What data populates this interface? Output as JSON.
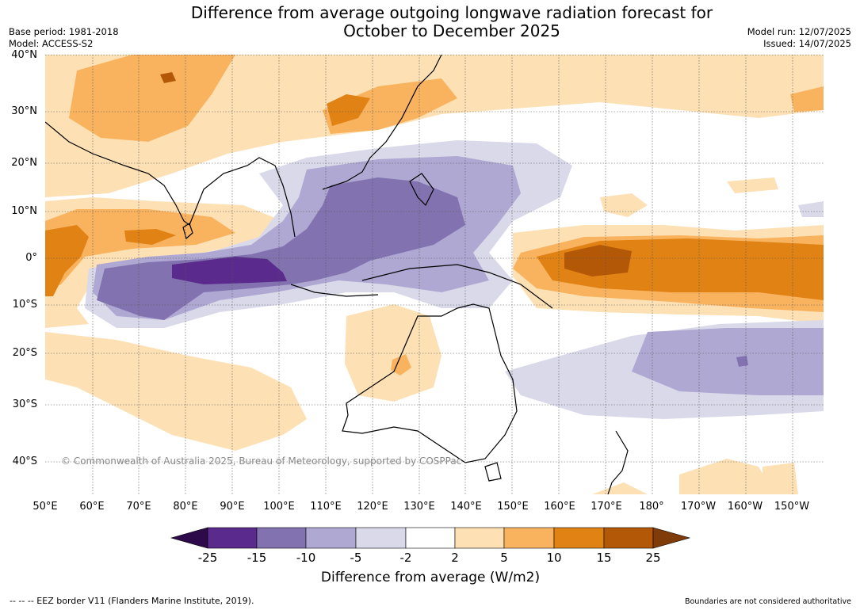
{
  "title": {
    "line1": "Difference from average outgoing longwave radiation forecast for",
    "line2": "October to December 2025"
  },
  "meta_left": {
    "base_period": "Base period: 1981-2018",
    "model": "Model: ACCESS-S2"
  },
  "meta_right": {
    "model_run": "Model run: 12/07/2025",
    "issued": "Issued: 14/07/2025"
  },
  "map": {
    "lat_labels": [
      "40°N",
      "30°N",
      "20°N",
      "10°N",
      "0°",
      "10°S",
      "20°S",
      "30°S",
      "40°S"
    ],
    "lon_labels": [
      "50°E",
      "60°E",
      "70°E",
      "80°E",
      "90°E",
      "100°E",
      "110°E",
      "120°E",
      "130°E",
      "140°E",
      "150°E",
      "160°E",
      "170°E",
      "180°",
      "170°W",
      "160°W",
      "150°W"
    ],
    "copyright": "© Commonwealth of Australia 2025, Bureau of Meteorology, supported by COSPPac"
  },
  "colorbar": {
    "tick_labels": [
      "-25",
      "-15",
      "-10",
      "-5",
      "-2",
      "2",
      "5",
      "10",
      "15",
      "25"
    ],
    "title": "Difference from average (W/m2)",
    "colors": {
      "below": "#2d0a4a",
      "bins": [
        "#5a2a8c",
        "#8273b0",
        "#afa8d2",
        "#d9d9ea",
        "#ffffff",
        "#fde0b4",
        "#f9b35f",
        "#e08214",
        "#b35806"
      ],
      "above": "#7f3b08"
    }
  },
  "footer": {
    "left": "--  --  -- EEZ border V11 (Flanders Marine Institute, 2019).",
    "right": "Boundaries are not considered authoritative"
  }
}
